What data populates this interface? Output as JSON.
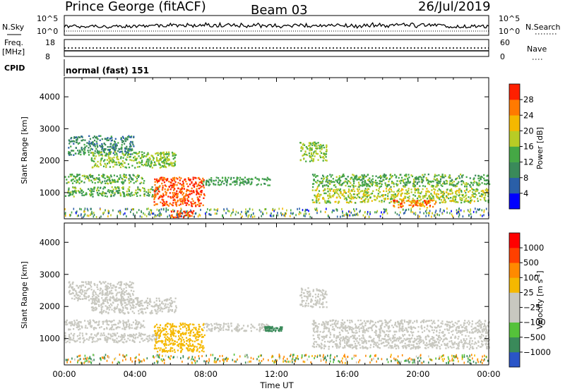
{
  "header": {
    "station": "Prince George (fitACF)",
    "beam": "Beam 03",
    "date": "26/Jul/2019"
  },
  "status_panels": {
    "nsky_label": "N.Sky",
    "nsky_ticks": [
      "10^5",
      "10^0"
    ],
    "nsearch_label": "N.Search",
    "freq_label_1": "Freq.",
    "freq_label_2": "[MHz]",
    "freq_ticks": [
      "18",
      "8"
    ],
    "nave_label": "Nave",
    "nave_ticks": [
      "60",
      "0"
    ],
    "cpid_label": "CPID",
    "cpid_text": "normal (fast) 151"
  },
  "chart_data": [
    {
      "type": "heatmap",
      "name": "power-panel",
      "xlabel": "",
      "ylabel": "Slant Range [km]",
      "xlim": [
        0,
        24
      ],
      "ylim": [
        180,
        4600
      ],
      "yticks": [
        "1000",
        "2000",
        "3000",
        "4000"
      ],
      "colorbar": {
        "label": "Power [dB]",
        "ticks": [
          "4",
          "8",
          "12",
          "16",
          "20",
          "24",
          "28"
        ],
        "colors": [
          "#0000ff",
          "#2a5fa8",
          "#3a8a5a",
          "#45a845",
          "#b8cc25",
          "#f5b800",
          "#ff7a00",
          "#ff2000"
        ]
      },
      "echo_regions": [
        {
          "t0": 0.2,
          "t1": 3.9,
          "r0": 2200,
          "r1": 2800,
          "power_db": 10
        },
        {
          "t0": 1.5,
          "t1": 6.3,
          "r0": 1800,
          "r1": 2300,
          "power_db": 16
        },
        {
          "t0": 0.0,
          "t1": 4.5,
          "r0": 1300,
          "r1": 1600,
          "power_db": 14
        },
        {
          "t0": 0.0,
          "t1": 5.3,
          "r0": 900,
          "r1": 1200,
          "power_db": 14
        },
        {
          "t0": 5.0,
          "t1": 7.9,
          "r0": 600,
          "r1": 1500,
          "power_db": 28
        },
        {
          "t0": 6.0,
          "t1": 7.3,
          "r0": 250,
          "r1": 450,
          "power_db": 28
        },
        {
          "t0": 7.8,
          "t1": 11.6,
          "r0": 1250,
          "r1": 1500,
          "power_db": 12
        },
        {
          "t0": 13.3,
          "t1": 14.8,
          "r0": 2000,
          "r1": 2600,
          "power_db": 16
        },
        {
          "t0": 14.0,
          "t1": 24.0,
          "r0": 1200,
          "r1": 1600,
          "power_db": 14
        },
        {
          "t0": 14.0,
          "t1": 24.0,
          "r0": 700,
          "r1": 1150,
          "power_db": 18
        },
        {
          "t0": 18.5,
          "t1": 21.0,
          "r0": 550,
          "r1": 800,
          "power_db": 26
        }
      ]
    },
    {
      "type": "heatmap",
      "name": "velocity-panel",
      "xlabel": "Time UT",
      "ylabel": "Slant Range [km]",
      "xlim": [
        0,
        24
      ],
      "ylim": [
        180,
        4600
      ],
      "yticks": [
        "1000",
        "2000",
        "3000",
        "4000"
      ],
      "xticks": [
        "00:00",
        "04:00",
        "08:00",
        "12:00",
        "16:00",
        "20:00",
        "00:00"
      ],
      "colorbar": {
        "label": "Velocity [m s",
        "label_sup": "-1",
        "label_end": "]",
        "ticks": [
          "1000",
          "500",
          "100",
          "25",
          "−25",
          "−100",
          "−500",
          "−1000"
        ],
        "colors": [
          "#2a55c8",
          "#3a8a5a",
          "#55c23a",
          "#c8c8c0",
          "#c8c8c0",
          "#f5b800",
          "#ff8a00",
          "#ff4000",
          "#ff0000"
        ]
      },
      "echo_regions": [
        {
          "t0": 0.2,
          "t1": 3.9,
          "r0": 2200,
          "r1": 2800,
          "velocity": 0
        },
        {
          "t0": 1.5,
          "t1": 6.3,
          "r0": 1800,
          "r1": 2300,
          "velocity": 0
        },
        {
          "t0": 0.0,
          "t1": 4.5,
          "r0": 1300,
          "r1": 1600,
          "velocity": 0
        },
        {
          "t0": 0.0,
          "t1": 5.3,
          "r0": 900,
          "r1": 1200,
          "velocity": 0
        },
        {
          "t0": 5.0,
          "t1": 7.9,
          "r0": 600,
          "r1": 1500,
          "velocity": -60
        },
        {
          "t0": 7.8,
          "t1": 11.6,
          "r0": 1250,
          "r1": 1500,
          "velocity": 0
        },
        {
          "t0": 11.3,
          "t1": 12.3,
          "r0": 1250,
          "r1": 1400,
          "velocity": 120
        },
        {
          "t0": 13.3,
          "t1": 14.8,
          "r0": 2000,
          "r1": 2600,
          "velocity": 0
        },
        {
          "t0": 14.0,
          "t1": 24.0,
          "r0": 1200,
          "r1": 1600,
          "velocity": 0
        },
        {
          "t0": 14.0,
          "t1": 24.0,
          "r0": 700,
          "r1": 1150,
          "velocity": 0
        }
      ]
    }
  ]
}
